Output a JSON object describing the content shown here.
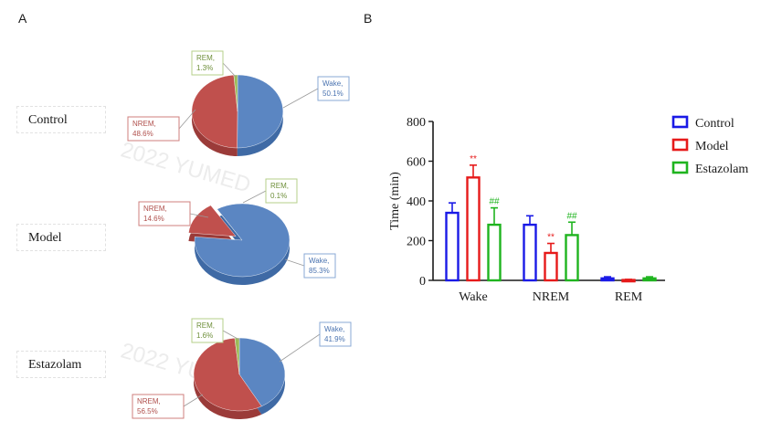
{
  "panel_a": {
    "letter": "A",
    "watermark": "2022 YUMED",
    "pies": [
      {
        "group": "Control",
        "slices": [
          {
            "name": "Wake",
            "pct_label": "50.1%",
            "value": 50.1
          },
          {
            "name": "NREM",
            "pct_label": "48.6%",
            "value": 48.6
          },
          {
            "name": "REM",
            "pct_label": "1.3%",
            "value": 1.3
          }
        ]
      },
      {
        "group": "Model",
        "slices": [
          {
            "name": "Wake",
            "pct_label": "85.3%",
            "value": 85.3
          },
          {
            "name": "NREM",
            "pct_label": "14.6%",
            "value": 14.6
          },
          {
            "name": "REM",
            "pct_label": "0.1%",
            "value": 0.1
          }
        ]
      },
      {
        "group": "Estazolam",
        "slices": [
          {
            "name": "Wake",
            "pct_label": "41.9%",
            "value": 41.9
          },
          {
            "name": "NREM",
            "pct_label": "56.5%",
            "value": 56.5
          },
          {
            "name": "REM",
            "pct_label": "1.6%",
            "value": 1.6
          }
        ]
      }
    ]
  },
  "panel_b": {
    "letter": "B"
  },
  "colors": {
    "wake": "#5b86c2",
    "nrem": "#c0504d",
    "rem": "#9bbb59",
    "control": "#1a1ae6",
    "model": "#e61a1a",
    "estazolam": "#1fb41f"
  },
  "chart_data": [
    {
      "type": "pie",
      "title": "Control",
      "labels": [
        "Wake",
        "NREM",
        "REM"
      ],
      "values": [
        50.1,
        48.6,
        1.3
      ]
    },
    {
      "type": "pie",
      "title": "Model",
      "labels": [
        "Wake",
        "NREM",
        "REM"
      ],
      "values": [
        85.3,
        14.6,
        0.1
      ]
    },
    {
      "type": "pie",
      "title": "Estazolam",
      "labels": [
        "Wake",
        "NREM",
        "REM"
      ],
      "values": [
        41.9,
        56.5,
        1.6
      ]
    },
    {
      "type": "bar",
      "title": "",
      "xlabel": "",
      "ylabel": "Time (min)",
      "ylim": [
        0,
        800
      ],
      "yticks": [
        "0",
        "200",
        "400",
        "600",
        "800"
      ],
      "categories": [
        "Wake",
        "NREM",
        "REM"
      ],
      "legend_position": "top-right",
      "series": [
        {
          "name": "Control",
          "values": [
            340,
            280,
            10
          ],
          "errors": [
            50,
            45,
            8
          ],
          "sig": [
            "",
            "",
            ""
          ]
        },
        {
          "name": "Model",
          "values": [
            518,
            138,
            2
          ],
          "errors": [
            62,
            48,
            3
          ],
          "sig": [
            "**",
            "**",
            ""
          ]
        },
        {
          "name": "Estazolam",
          "values": [
            280,
            228,
            10
          ],
          "errors": [
            85,
            65,
            8
          ],
          "sig": [
            "##",
            "##",
            ""
          ]
        }
      ]
    }
  ]
}
